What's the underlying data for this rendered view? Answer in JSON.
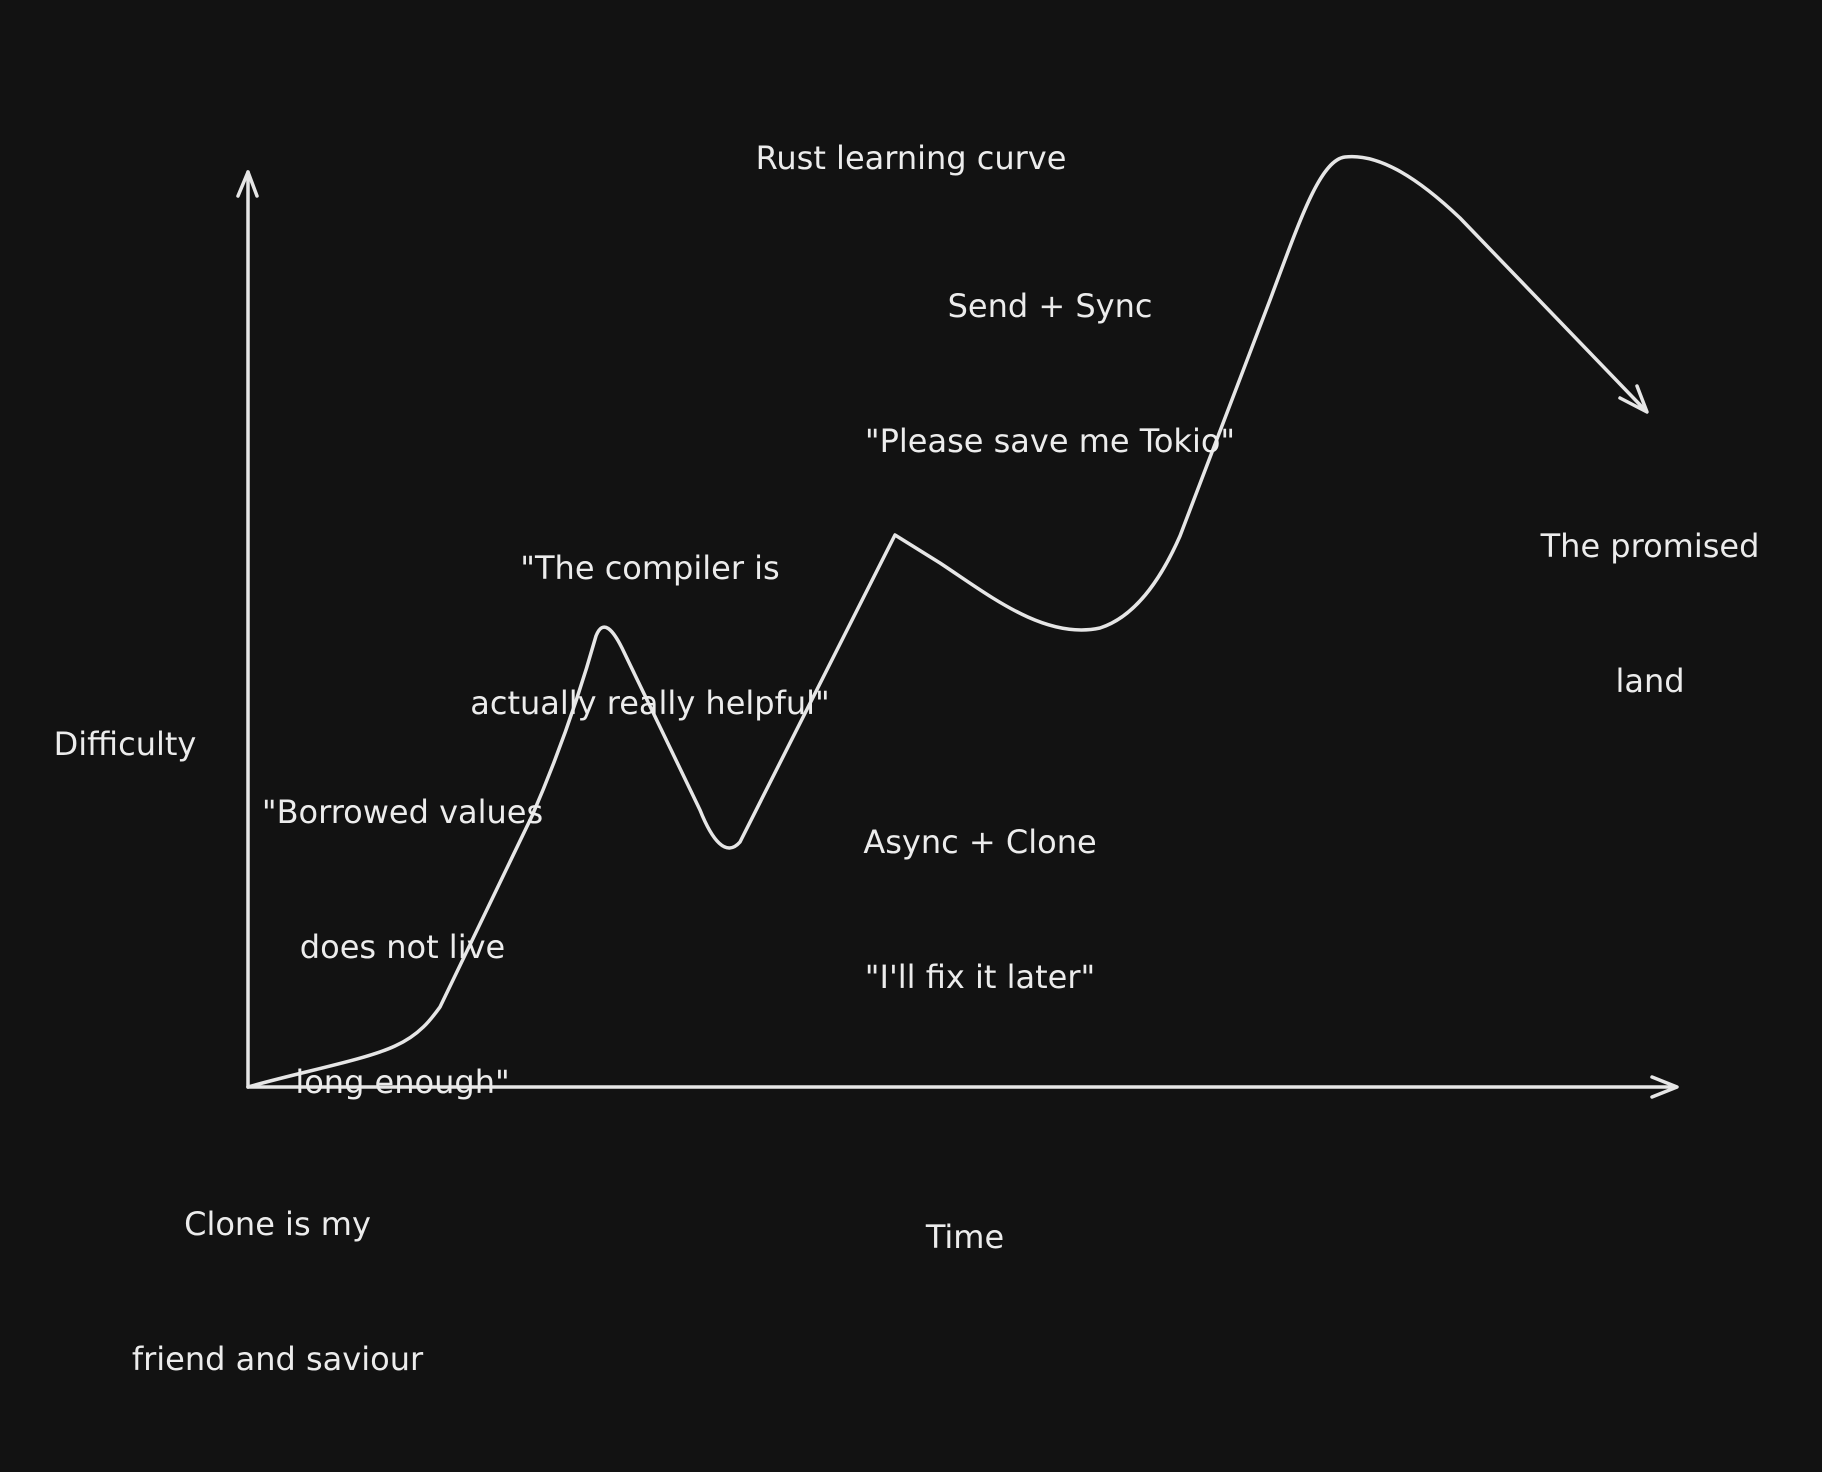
{
  "diagram": {
    "title": "Rust learning curve",
    "y_axis_label": "Difficulty",
    "x_axis_label": "Time",
    "annotations": {
      "start": [
        "Clone is my",
        "friend and saviour"
      ],
      "borrowed": [
        "\"Borrowed values",
        "does not live",
        "long enough\""
      ],
      "compiler": [
        "\"The compiler is",
        "actually really helpful\""
      ],
      "async_clone": [
        "Async + Clone",
        "\"I'll fix it later\""
      ],
      "send_sync": [
        "Send + Sync",
        "\"Please save me Tokio\""
      ],
      "promised": [
        "The promised",
        "land"
      ]
    },
    "colors": {
      "background": "#121212",
      "stroke": "#e6e6e6",
      "text": "#ececec"
    }
  }
}
